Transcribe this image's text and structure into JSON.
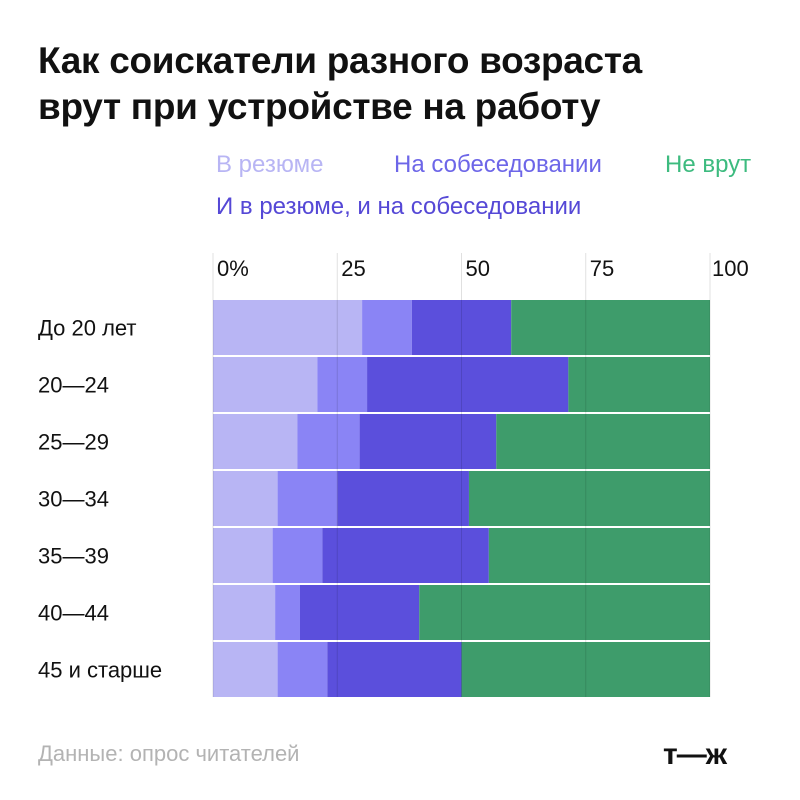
{
  "title_lines": [
    "Как соискатели разного возраста",
    "врут при устройстве на работу"
  ],
  "source": "Данные: опрос читателей",
  "logo": "т—ж",
  "chart_data": {
    "type": "bar",
    "orientation": "horizontal",
    "stacked": true,
    "title": "Как соискатели разного возраста врут при устройстве на работу",
    "categories": [
      "До 20 лет",
      "20—24",
      "25—29",
      "30—34",
      "35—39",
      "40—44",
      "45 и старше"
    ],
    "xlim": [
      0,
      100
    ],
    "x_ticks": [
      0,
      25,
      50,
      75,
      100
    ],
    "x_tick_labels": [
      "0%",
      "25",
      "50",
      "75",
      "100"
    ],
    "gridlines": true,
    "legend_position": "top",
    "series": [
      {
        "name": "В резюме",
        "color": "#b8b5f4",
        "values": [
          30,
          21,
          17,
          13,
          12,
          12.5,
          13
        ]
      },
      {
        "name": "На собеседовании",
        "color": "#8a84f5",
        "values": [
          10,
          10,
          12.5,
          12,
          10,
          5,
          10
        ]
      },
      {
        "name": "И в резюме, и на собеседовании",
        "color": "#5b4fdc",
        "values": [
          20,
          40.5,
          27.5,
          26.5,
          33.5,
          24,
          27
        ]
      },
      {
        "name": "Не врут",
        "color": "#3e9c6b",
        "values": [
          40,
          28.5,
          43,
          48.5,
          44.5,
          58.5,
          50
        ]
      }
    ]
  },
  "legend_colors": [
    "#b8b5f4",
    "#6d66e8",
    "#3dbb7f",
    "#5548d6"
  ]
}
